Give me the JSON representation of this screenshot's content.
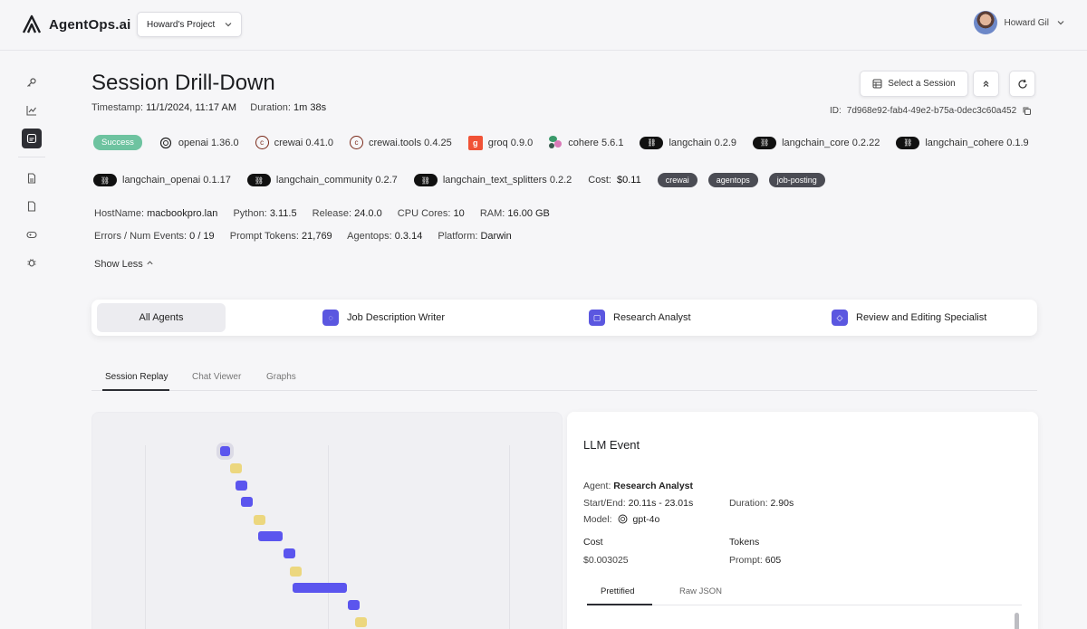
{
  "app": {
    "brand": "AgentOps.ai",
    "project": "Howard's Project",
    "user": "Howard Gil"
  },
  "sidebar": {
    "items": [
      {
        "icon": "key-icon"
      },
      {
        "icon": "chart-icon"
      },
      {
        "icon": "session-icon",
        "active": true
      },
      {
        "icon": "document-icon"
      },
      {
        "icon": "file-icon"
      },
      {
        "icon": "controller-icon"
      },
      {
        "icon": "bug-icon"
      }
    ]
  },
  "header": {
    "title": "Session Drill-Down",
    "timestamp_label": "Timestamp:",
    "timestamp_value": "11/1/2024, 11:17 AM",
    "duration_label": "Duration:",
    "duration_value": "1m 38s",
    "select_session_label": "Select a Session",
    "id_label": "ID:",
    "id_value": "7d968e92-fab4-49e2-b75a-0dec3c60a452"
  },
  "status": {
    "label": "Success",
    "color": "#6ec3a0"
  },
  "libraries_row1": [
    {
      "name": "openai 1.36.0",
      "icon": "openai-icon"
    },
    {
      "name": "crewai 0.41.0",
      "icon": "crewai-icon"
    },
    {
      "name": "crewai.tools 0.4.25",
      "icon": "crewai-icon"
    },
    {
      "name": "groq 0.9.0",
      "icon": "groq-icon"
    },
    {
      "name": "cohere 5.6.1",
      "icon": "cohere-icon"
    },
    {
      "name": "langchain 0.2.9",
      "icon": "langchain-icon"
    },
    {
      "name": "langchain_core 0.2.22",
      "icon": "langchain-icon"
    },
    {
      "name": "langchain_cohere 0.1.9",
      "icon": "langchain-icon"
    }
  ],
  "libraries_row2": [
    {
      "name": "langchain_openai 0.1.17",
      "icon": "langchain-icon"
    },
    {
      "name": "langchain_community 0.2.7",
      "icon": "langchain-icon"
    },
    {
      "name": "langchain_text_splitters 0.2.2",
      "icon": "langchain-icon"
    }
  ],
  "cost": {
    "label": "Cost:",
    "value": "$0.11"
  },
  "tags": [
    "crewai",
    "agentops",
    "job-posting"
  ],
  "host_info": {
    "hostname_label": "HostName:",
    "hostname": "macbookpro.lan",
    "python_label": "Python:",
    "python": "3.11.5",
    "release_label": "Release:",
    "release": "24.0.0",
    "cpu_label": "CPU Cores:",
    "cpu": "10",
    "ram_label": "RAM:",
    "ram": "16.00 GB"
  },
  "event_info": {
    "errors_label": "Errors / Num Events:",
    "errors": "0 / 19",
    "prompt_label": "Prompt Tokens:",
    "prompt": "21,769",
    "agentops_label": "Agentops:",
    "agentops": "0.3.14",
    "platform_label": "Platform:",
    "platform": "Darwin"
  },
  "show_less": "Show Less",
  "agents": {
    "all": "All Agents",
    "items": [
      "Job Description Writer",
      "Research Analyst",
      "Review and Editing Specialist"
    ]
  },
  "tabs": [
    "Session Replay",
    "Chat Viewer",
    "Graphs"
  ],
  "llm_event": {
    "title": "LLM Event",
    "agent_label": "Agent:",
    "agent": "Research Analyst",
    "startend_label": "Start/End:",
    "startend": "20.11s - 23.01s",
    "duration_label": "Duration:",
    "duration": "2.90s",
    "model_label": "Model:",
    "model": "gpt-4o",
    "cost_label": "Cost",
    "cost": "$0.003025",
    "tokens_label": "Tokens",
    "prompt_label": "Prompt:",
    "prompt": "605",
    "subtabs": [
      "Prettified",
      "Raw JSON"
    ]
  },
  "timeline": {
    "colors": {
      "llm": "#5b55ee",
      "tool": "#ecd77e"
    }
  }
}
